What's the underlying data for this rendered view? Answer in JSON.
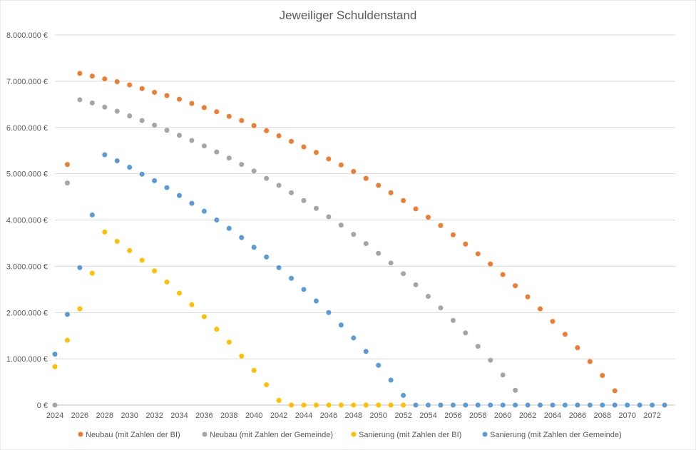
{
  "chart_data": {
    "type": "scatter",
    "title": "Jeweiliger Schuldenstand",
    "xlabel": "",
    "ylabel": "",
    "xlim": [
      2024,
      2073
    ],
    "ylim": [
      0,
      8000000
    ],
    "x_ticks": [
      "2024",
      "2026",
      "2028",
      "2030",
      "2032",
      "2034",
      "2036",
      "2038",
      "2040",
      "2042",
      "2044",
      "2046",
      "2048",
      "2050",
      "2052",
      "2054",
      "2056",
      "2058",
      "2060",
      "2062",
      "2064",
      "2066",
      "2068",
      "2070",
      "2072"
    ],
    "y_ticks": [
      "0 €",
      "1.000.000 €",
      "2.000.000 €",
      "3.000.000 €",
      "4.000.000 €",
      "5.000.000 €",
      "6.000.000 €",
      "7.000.000 €",
      "8.000.000 €"
    ],
    "grid": "horizontal",
    "legend_position": "bottom",
    "series": [
      {
        "name": "Neubau (mit Zahlen der BI)",
        "color": "#ed7d31",
        "x": [
          2025,
          2026,
          2027,
          2028,
          2029,
          2030,
          2031,
          2032,
          2033,
          2034,
          2035,
          2036,
          2037,
          2038,
          2039,
          2040,
          2041,
          2042,
          2043,
          2044,
          2045,
          2046,
          2047,
          2048,
          2049,
          2050,
          2051,
          2052,
          2053,
          2054,
          2055,
          2056,
          2057,
          2058,
          2059,
          2060,
          2061,
          2062,
          2063,
          2064,
          2065,
          2066,
          2067,
          2068,
          2069
        ],
        "y": [
          5200000,
          7170000,
          7110000,
          7050000,
          6990000,
          6920000,
          6840000,
          6760000,
          6690000,
          6610000,
          6520000,
          6430000,
          6340000,
          6240000,
          6150000,
          6040000,
          5930000,
          5820000,
          5700000,
          5580000,
          5460000,
          5320000,
          5190000,
          5050000,
          4900000,
          4750000,
          4590000,
          4420000,
          4240000,
          4060000,
          3880000,
          3680000,
          3480000,
          3270000,
          3050000,
          2820000,
          2580000,
          2340000,
          2080000,
          1810000,
          1530000,
          1240000,
          940000,
          640000,
          310000
        ]
      },
      {
        "name": "Neubau (mit Zahlen der Gemeinde)",
        "color": "#a5a5a5",
        "x": [
          2024,
          2025,
          2026,
          2027,
          2028,
          2029,
          2030,
          2031,
          2032,
          2033,
          2034,
          2035,
          2036,
          2037,
          2038,
          2039,
          2040,
          2041,
          2042,
          2043,
          2044,
          2045,
          2046,
          2047,
          2048,
          2049,
          2050,
          2051,
          2052,
          2053,
          2054,
          2055,
          2056,
          2057,
          2058,
          2059,
          2060,
          2061
        ],
        "y": [
          0,
          4800000,
          6600000,
          6530000,
          6440000,
          6350000,
          6250000,
          6150000,
          6050000,
          5940000,
          5830000,
          5720000,
          5600000,
          5470000,
          5340000,
          5200000,
          5060000,
          4900000,
          4750000,
          4590000,
          4420000,
          4250000,
          4070000,
          3890000,
          3690000,
          3490000,
          3280000,
          3070000,
          2840000,
          2600000,
          2350000,
          2100000,
          1830000,
          1560000,
          1270000,
          970000,
          650000,
          320000
        ]
      },
      {
        "name": "Sanierung (mit Zahlen der BI)",
        "color": "#ffc000",
        "x": [
          2024,
          2025,
          2026,
          2027,
          2028,
          2029,
          2030,
          2031,
          2032,
          2033,
          2034,
          2035,
          2036,
          2037,
          2038,
          2039,
          2040,
          2041,
          2042,
          2043,
          2044,
          2045,
          2046,
          2047,
          2048,
          2049,
          2050,
          2051,
          2052
        ],
        "y": [
          830000,
          1400000,
          2080000,
          2850000,
          3740000,
          3540000,
          3340000,
          3130000,
          2900000,
          2660000,
          2420000,
          2170000,
          1910000,
          1640000,
          1360000,
          1060000,
          750000,
          440000,
          100000,
          0,
          0,
          0,
          0,
          0,
          0,
          0,
          0,
          0,
          0
        ]
      },
      {
        "name": "Sanierung (mit Zahlen der Gemeinde)",
        "color": "#5b9bd5",
        "x": [
          2024,
          2025,
          2026,
          2027,
          2028,
          2029,
          2030,
          2031,
          2032,
          2033,
          2034,
          2035,
          2036,
          2037,
          2038,
          2039,
          2040,
          2041,
          2042,
          2043,
          2044,
          2045,
          2046,
          2047,
          2048,
          2049,
          2050,
          2051,
          2052,
          2053,
          2054,
          2055,
          2056,
          2057,
          2058,
          2059,
          2060,
          2061,
          2062,
          2063,
          2064,
          2065,
          2066,
          2067,
          2068,
          2069,
          2070,
          2071,
          2072,
          2073
        ],
        "y": [
          1100000,
          1960000,
          2970000,
          4110000,
          5410000,
          5280000,
          5140000,
          4990000,
          4850000,
          4700000,
          4530000,
          4360000,
          4190000,
          4000000,
          3820000,
          3620000,
          3410000,
          3200000,
          2970000,
          2740000,
          2500000,
          2250000,
          2000000,
          1730000,
          1450000,
          1160000,
          860000,
          540000,
          210000,
          0,
          0,
          0,
          0,
          0,
          0,
          0,
          0,
          0,
          0,
          0,
          0,
          0,
          0,
          0,
          0,
          0,
          0,
          0,
          0,
          0
        ]
      }
    ]
  }
}
